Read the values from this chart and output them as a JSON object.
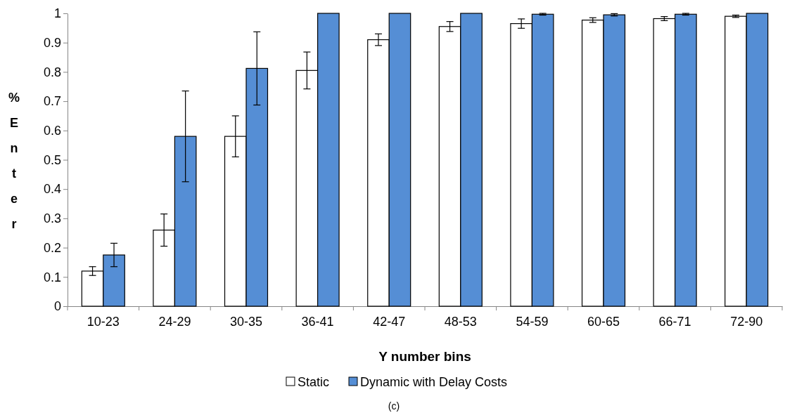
{
  "chart_data": {
    "type": "bar",
    "xlabel": "Y number bins",
    "ylabel": "%Enter",
    "annotations": [
      "(c)"
    ],
    "categories": [
      "10-23",
      "24-29",
      "30-35",
      "36-41",
      "42-47",
      "48-53",
      "54-59",
      "60-65",
      "66-71",
      "72-90"
    ],
    "series": [
      {
        "name": "Static",
        "color": "#ffffff",
        "values": [
          0.12,
          0.26,
          0.58,
          0.805,
          0.91,
          0.955,
          0.965,
          0.977,
          0.982,
          0.99
        ],
        "errors": [
          0.015,
          0.055,
          0.07,
          0.063,
          0.02,
          0.017,
          0.016,
          0.008,
          0.007,
          0.004
        ]
      },
      {
        "name": "Dynamic with Delay Costs",
        "color": "#558ed5",
        "values": [
          0.175,
          0.58,
          0.812,
          1,
          1,
          1,
          0.997,
          0.995,
          0.997,
          1
        ],
        "errors": [
          0.04,
          0.155,
          0.125,
          null,
          null,
          null,
          0.003,
          0.004,
          0.003,
          null
        ]
      }
    ],
    "ylim": [
      0,
      1
    ],
    "yticks": [
      0,
      0.1,
      0.2,
      0.3,
      0.4,
      0.5,
      0.6,
      0.7,
      0.8,
      0.9,
      1
    ],
    "grid": false,
    "legend": "bottom"
  }
}
